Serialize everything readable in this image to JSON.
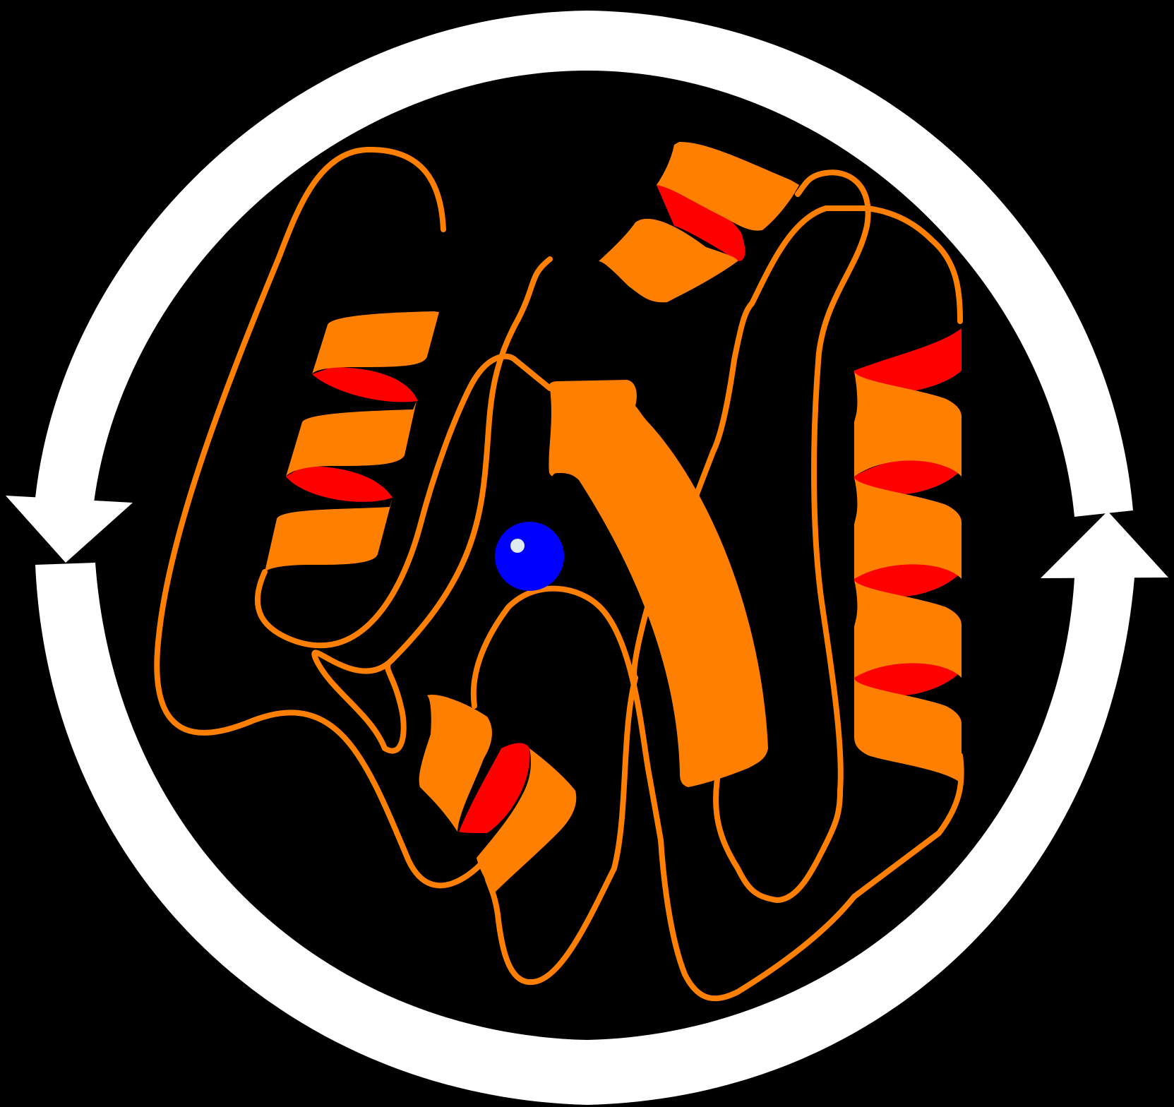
{
  "figure": {
    "background": "#000000",
    "ring_color": "#ffffff",
    "ribbon_color": "#ff8000",
    "helix_inner_color": "#ff0000",
    "ion_color": "#0000ff",
    "ion_highlight_color": "#dfe9f2"
  },
  "elements": {
    "cycle_arrows": [
      "left-arrow-icon",
      "right-arrow-icon"
    ],
    "helices": [
      "left-helix",
      "top-helix",
      "right-helix",
      "bottom-helix"
    ],
    "strand": "central-beta-strand",
    "ion": "metal-ion"
  }
}
